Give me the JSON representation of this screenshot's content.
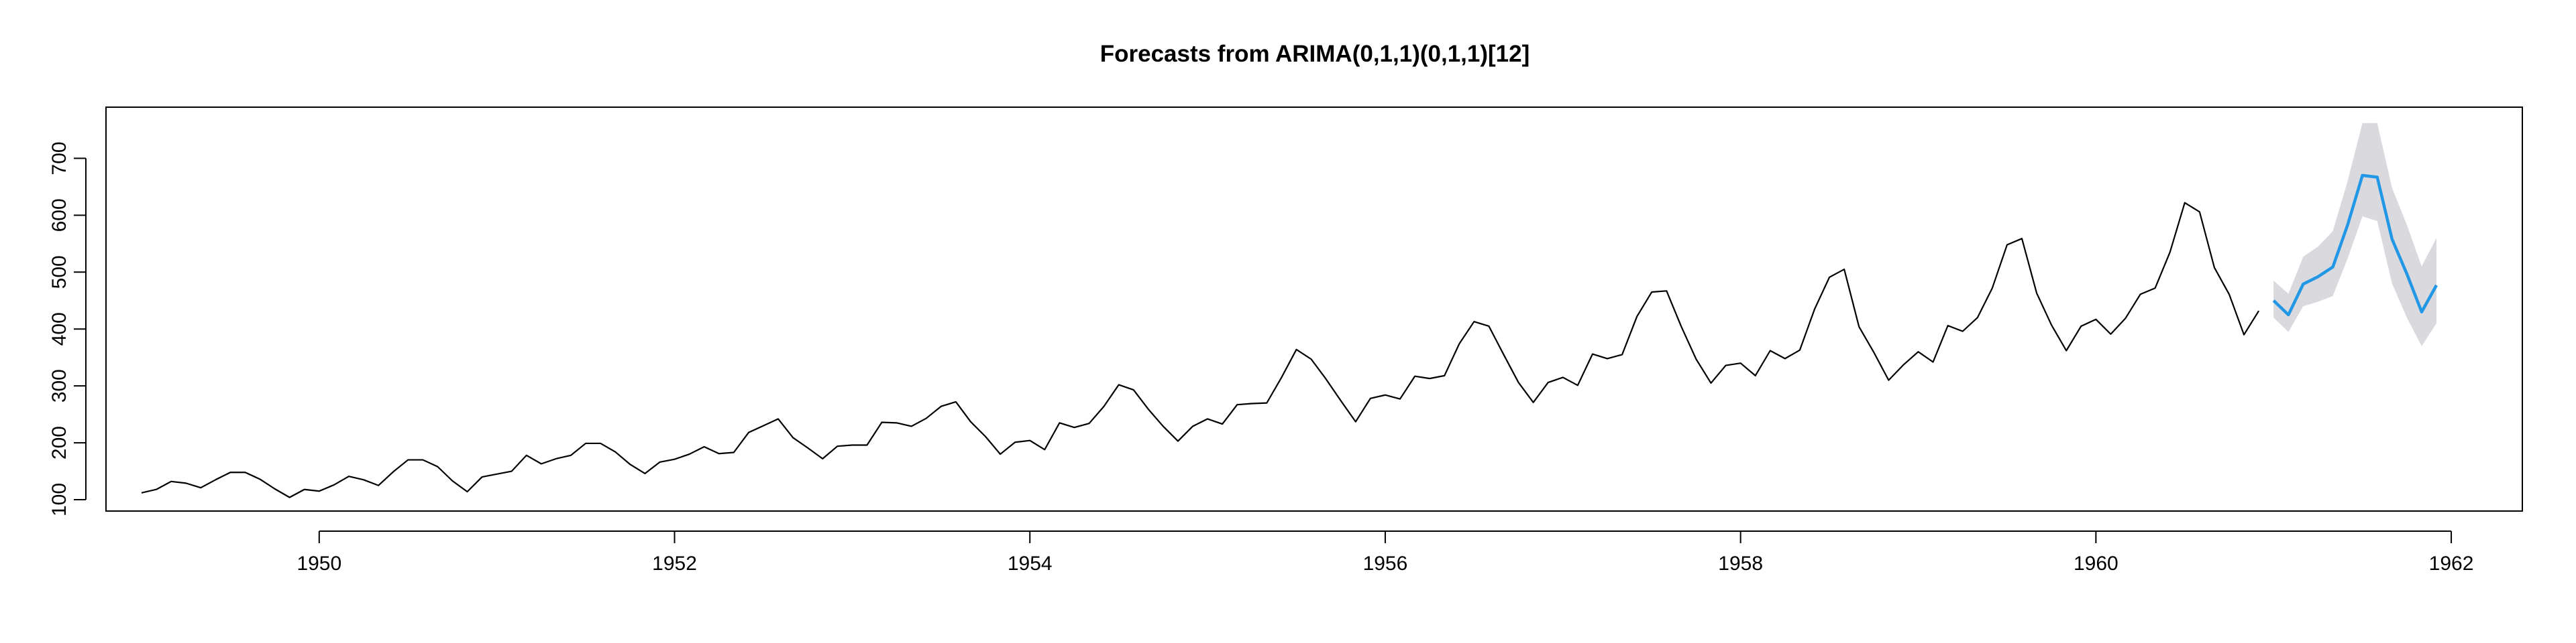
{
  "chart_data": {
    "type": "line",
    "title": "Forecasts from ARIMA(0,1,1)(0,1,1)[12]",
    "xlabel": "",
    "ylabel": "",
    "xlim": [
      1948.8,
      1962.4
    ],
    "ylim": [
      80,
      790
    ],
    "x_ticks": [
      1950,
      1952,
      1954,
      1956,
      1958,
      1960,
      1962
    ],
    "y_ticks": [
      100,
      200,
      300,
      400,
      500,
      600,
      700
    ],
    "grid": false,
    "colors": {
      "observed": "#000000",
      "forecast": "#2297E6",
      "interval": "#D9D9DE"
    },
    "observed": {
      "start": 1949,
      "frequency": 12,
      "values": [
        112,
        118,
        132,
        129,
        121,
        135,
        148,
        148,
        136,
        119,
        104,
        118,
        115,
        126,
        141,
        135,
        125,
        149,
        170,
        170,
        158,
        133,
        114,
        140,
        145,
        150,
        178,
        163,
        172,
        178,
        199,
        199,
        184,
        162,
        146,
        166,
        171,
        180,
        193,
        181,
        183,
        218,
        230,
        242,
        209,
        191,
        172,
        194,
        196,
        196,
        236,
        235,
        229,
        243,
        264,
        272,
        237,
        211,
        180,
        201,
        204,
        188,
        235,
        227,
        234,
        264,
        302,
        293,
        259,
        229,
        203,
        229,
        242,
        233,
        267,
        269,
        270,
        315,
        364,
        347,
        312,
        274,
        237,
        278,
        284,
        277,
        317,
        313,
        318,
        374,
        413,
        405,
        355,
        306,
        271,
        306,
        315,
        301,
        356,
        348,
        355,
        422,
        465,
        467,
        404,
        347,
        305,
        336,
        340,
        318,
        362,
        348,
        363,
        435,
        491,
        505,
        404,
        359,
        310,
        337,
        360,
        342,
        406,
        396,
        420,
        472,
        548,
        559,
        463,
        407,
        362,
        405,
        417,
        391,
        419,
        461,
        472,
        535,
        622,
        606,
        508,
        461,
        390,
        432
      ]
    },
    "forecast": {
      "start": 1961,
      "frequency": 12,
      "mean": [
        450,
        425,
        479,
        492,
        509,
        583,
        670,
        667,
        558,
        497,
        430,
        477
      ],
      "lower": [
        420,
        395,
        440,
        448,
        458,
        524,
        598,
        590,
        480,
        420,
        370,
        410
      ],
      "upper": [
        485,
        462,
        527,
        545,
        572,
        660,
        762,
        762,
        648,
        583,
        510,
        560
      ]
    }
  }
}
